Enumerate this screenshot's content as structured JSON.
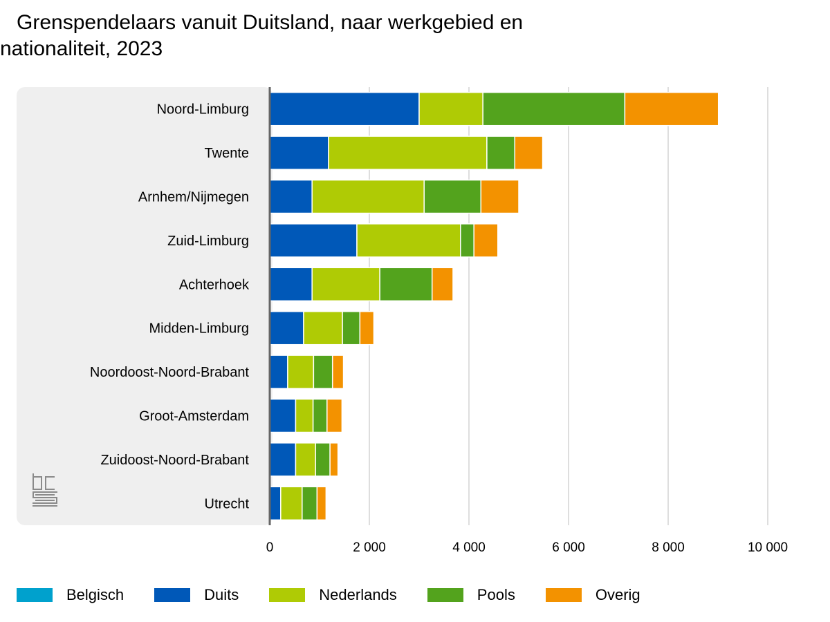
{
  "chart_title": {
    "line1": "Grenspendelaars vanuit Duitsland, naar werkgebied en",
    "line2": "nationaliteit, 2023"
  },
  "chart_data": {
    "type": "bar",
    "orientation": "horizontal",
    "stacked": true,
    "title": "Grenspendelaars vanuit Duitsland, naar werkgebied en nationaliteit, 2023",
    "categories": [
      "Noord-Limburg",
      "Twente",
      "Arnhem/Nijmegen",
      "Zuid-Limburg",
      "Achterhoek",
      "Midden-Limburg",
      "Noordoost-Noord-Brabant",
      "Groot-Amsterdam",
      "Zuidoost-Noord-Brabant",
      "Utrecht"
    ],
    "series": [
      {
        "name": "Belgisch",
        "color": "#00a1cd",
        "values": [
          0,
          0,
          0,
          0,
          0,
          0,
          0,
          0,
          0,
          0
        ]
      },
      {
        "name": "Duits",
        "color": "#0058b8",
        "values": [
          3000,
          1180,
          850,
          1750,
          850,
          680,
          360,
          520,
          520,
          220
        ]
      },
      {
        "name": "Nederlands",
        "color": "#afcb05",
        "values": [
          1280,
          3180,
          2250,
          2080,
          1360,
          780,
          520,
          350,
          400,
          430
        ]
      },
      {
        "name": "Pools",
        "color": "#53a31d",
        "values": [
          2850,
          560,
          1140,
          270,
          1050,
          350,
          380,
          280,
          290,
          300
        ]
      },
      {
        "name": "Overig",
        "color": "#f39200",
        "values": [
          1880,
          560,
          760,
          480,
          420,
          280,
          220,
          300,
          160,
          180
        ]
      }
    ],
    "xlim": [
      0,
      10000
    ],
    "xticks": [
      0,
      2000,
      4000,
      6000,
      8000,
      10000
    ],
    "xtick_labels": [
      "0",
      "2 000",
      "4 000",
      "6 000",
      "8 000",
      "10 000"
    ],
    "xlabel": "",
    "ylabel": "",
    "grid": "vertical",
    "legend_position": "bottom"
  },
  "logo": {
    "name": "cbs-logo-icon",
    "text": "cbs"
  }
}
